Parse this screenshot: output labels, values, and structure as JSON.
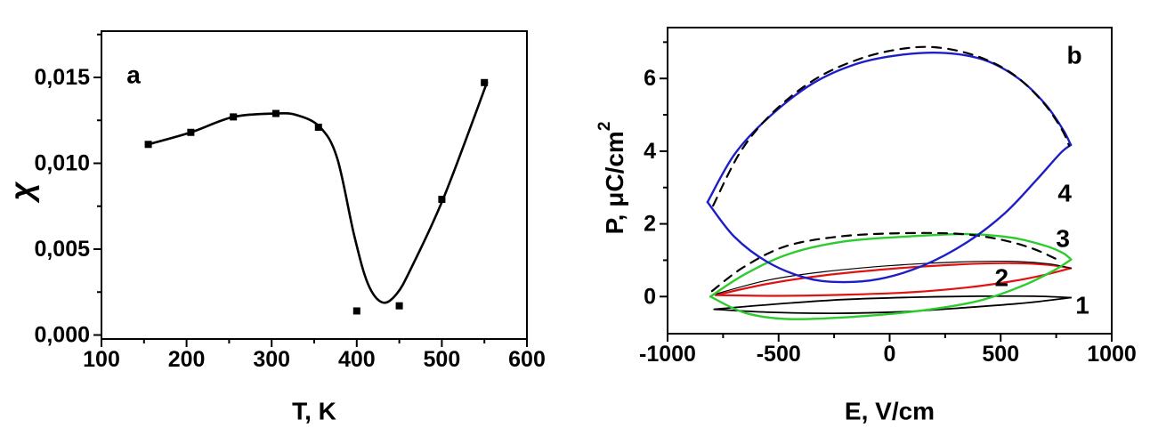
{
  "figure": {
    "background": "#ffffff",
    "axis_color": "#000000",
    "panel_a_letter": "a",
    "panel_b_letter": "b"
  },
  "chart_data": [
    {
      "type": "line",
      "panel": "a",
      "panel_label": "a",
      "xlabel": "T, K",
      "ylabel": "χ",
      "xlim": [
        100,
        600
      ],
      "ylim": [
        0,
        0.0175
      ],
      "grid": false,
      "x_ticks": [
        100,
        200,
        300,
        400,
        500,
        600
      ],
      "x_minor_ticks": [
        150,
        250,
        350,
        450,
        550
      ],
      "y_ticks": [
        0,
        0.005,
        0.01,
        0.015
      ],
      "y_tick_labels": [
        "0,000",
        "0,005",
        "0,010",
        "0,015"
      ],
      "y_minor_ticks": [
        0.0025,
        0.0075,
        0.0125,
        0.0175
      ],
      "series": [
        {
          "name": "experimental-points",
          "marker": "square",
          "marker_size": 8,
          "color": "#000000",
          "x": [
            155,
            205,
            255,
            305,
            355,
            400,
            450,
            500,
            550
          ],
          "y": [
            0.0111,
            0.0118,
            0.0127,
            0.0129,
            0.0121,
            0.0014,
            0.0017,
            0.0079,
            0.0147
          ]
        }
      ],
      "fit_curve": {
        "name": "smooth-fit",
        "color": "#000000",
        "width": 2.6,
        "points": [
          [
            155,
            0.0111
          ],
          [
            205,
            0.0118
          ],
          [
            255,
            0.0127
          ],
          [
            305,
            0.0129
          ],
          [
            330,
            0.0128
          ],
          [
            357,
            0.0121
          ],
          [
            377,
            0.0103
          ],
          [
            397,
            0.0058
          ],
          [
            413,
            0.003
          ],
          [
            430,
            0.0019
          ],
          [
            447,
            0.0024
          ],
          [
            465,
            0.004
          ],
          [
            503,
            0.0081
          ],
          [
            553,
            0.0147
          ]
        ]
      }
    },
    {
      "type": "line",
      "panel": "b",
      "panel_label": "b",
      "xlabel": "E, V/cm",
      "ylabel": "P, μC/cm²",
      "ylabel_main": "P, μC/cm",
      "ylabel_sup": "2",
      "xlim": [
        -1000,
        1000
      ],
      "ylim": [
        -1.0,
        7.4
      ],
      "grid": false,
      "x_ticks": [
        -1000,
        -500,
        0,
        500,
        1000
      ],
      "x_minor_ticks": [
        -750,
        -250,
        250,
        750
      ],
      "y_ticks": [
        0,
        2,
        4,
        6
      ],
      "y_tick_labels": [
        "0",
        "2",
        "4",
        "6"
      ],
      "y_minor_ticks": [
        1,
        3,
        5,
        7
      ],
      "loops": [
        {
          "label": "1",
          "color": "#000000",
          "width": 1.8,
          "label_pos": [
            868,
            -0.24
          ],
          "upper": [
            [
              -790,
              -0.35
            ],
            [
              -500,
              -0.2
            ],
            [
              -200,
              -0.08
            ],
            [
              100,
              -0.02
            ],
            [
              400,
              0.01
            ],
            [
              650,
              0.01
            ],
            [
              816,
              -0.03
            ]
          ],
          "lower": [
            [
              -790,
              -0.35
            ],
            [
              -550,
              -0.43
            ],
            [
              -250,
              -0.46
            ],
            [
              50,
              -0.42
            ],
            [
              350,
              -0.3
            ],
            [
              620,
              -0.17
            ],
            [
              816,
              -0.03
            ]
          ]
        },
        {
          "label": "2",
          "color": "#e01212",
          "width": 2.2,
          "label_pos": [
            504,
            0.52
          ],
          "upper": [
            [
              -784,
              0.04
            ],
            [
              -550,
              0.35
            ],
            [
              -300,
              0.58
            ],
            [
              0,
              0.76
            ],
            [
              300,
              0.88
            ],
            [
              550,
              0.92
            ],
            [
              720,
              0.87
            ],
            [
              816,
              0.78
            ]
          ],
          "lower": [
            [
              -784,
              0.04
            ],
            [
              -500,
              0.02
            ],
            [
              -200,
              0.05
            ],
            [
              100,
              0.12
            ],
            [
              350,
              0.25
            ],
            [
              550,
              0.42
            ],
            [
              700,
              0.6
            ],
            [
              816,
              0.78
            ]
          ]
        },
        {
          "label": "3",
          "color": "#2ccc2c",
          "width": 2.4,
          "label_pos": [
            780,
            1.6
          ],
          "upper": [
            [
              -807,
              0.0
            ],
            [
              -650,
              0.62
            ],
            [
              -450,
              1.18
            ],
            [
              -200,
              1.52
            ],
            [
              100,
              1.66
            ],
            [
              350,
              1.72
            ],
            [
              550,
              1.62
            ],
            [
              700,
              1.4
            ],
            [
              780,
              1.2
            ],
            [
              817,
              1.02
            ]
          ],
          "lower": [
            [
              -807,
              0.0
            ],
            [
              -650,
              -0.45
            ],
            [
              -450,
              -0.62
            ],
            [
              -150,
              -0.55
            ],
            [
              150,
              -0.38
            ],
            [
              400,
              -0.12
            ],
            [
              600,
              0.3
            ],
            [
              740,
              0.72
            ],
            [
              817,
              1.02
            ]
          ]
        },
        {
          "label": "4",
          "color": "#1e1ec8",
          "width": 2.4,
          "label_pos": [
            788,
            2.85
          ],
          "upper": [
            [
              -820,
              2.6
            ],
            [
              -700,
              3.9
            ],
            [
              -550,
              4.9
            ],
            [
              -350,
              5.85
            ],
            [
              -150,
              6.4
            ],
            [
              50,
              6.65
            ],
            [
              250,
              6.7
            ],
            [
              430,
              6.5
            ],
            [
              580,
              6.0
            ],
            [
              700,
              5.3
            ],
            [
              780,
              4.6
            ],
            [
              816,
              4.17
            ]
          ],
          "lower": [
            [
              -820,
              2.6
            ],
            [
              -700,
              1.65
            ],
            [
              -550,
              0.95
            ],
            [
              -380,
              0.52
            ],
            [
              -230,
              0.4
            ],
            [
              -50,
              0.48
            ],
            [
              150,
              0.85
            ],
            [
              350,
              1.5
            ],
            [
              520,
              2.3
            ],
            [
              660,
              3.2
            ],
            [
              770,
              3.95
            ],
            [
              816,
              4.17
            ]
          ]
        }
      ],
      "fits": [
        {
          "name": "thin-solid-fit-loop2",
          "style": "solid",
          "color": "#000000",
          "width": 1.2,
          "points": [
            [
              -784,
              0.07
            ],
            [
              -550,
              0.45
            ],
            [
              -300,
              0.68
            ],
            [
              0,
              0.85
            ],
            [
              300,
              0.95
            ],
            [
              550,
              0.97
            ],
            [
              720,
              0.9
            ],
            [
              816,
              0.78
            ]
          ]
        },
        {
          "name": "dashed-fit-loop3",
          "style": "dashed",
          "color": "#000000",
          "width": 2.2,
          "points": [
            [
              -800,
              0.15
            ],
            [
              -660,
              0.8
            ],
            [
              -470,
              1.38
            ],
            [
              -230,
              1.65
            ],
            [
              30,
              1.74
            ],
            [
              300,
              1.73
            ],
            [
              490,
              1.58
            ],
            [
              640,
              1.33
            ],
            [
              755,
              1.02
            ]
          ]
        },
        {
          "name": "dashed-fit-loop4",
          "style": "dashed",
          "color": "#000000",
          "width": 2.2,
          "points": [
            [
              -795,
              2.5
            ],
            [
              -670,
              4.0
            ],
            [
              -520,
              5.1
            ],
            [
              -330,
              6.0
            ],
            [
              -130,
              6.55
            ],
            [
              60,
              6.82
            ],
            [
              220,
              6.85
            ],
            [
              400,
              6.6
            ],
            [
              560,
              6.1
            ],
            [
              690,
              5.35
            ],
            [
              775,
              4.6
            ],
            [
              808,
              4.15
            ]
          ]
        }
      ]
    }
  ]
}
